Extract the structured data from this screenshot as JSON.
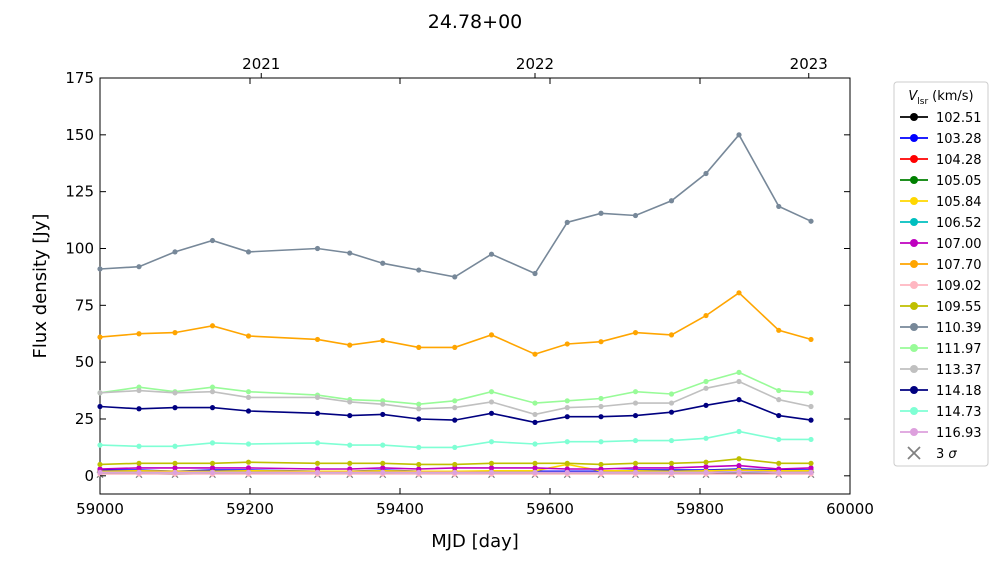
{
  "chart_data": {
    "type": "line",
    "title": "24.78+00",
    "xlabel": "MJD [day]",
    "ylabel": "Flux density [Jy]",
    "xlim": [
      59000,
      60000
    ],
    "ylim": [
      -8,
      175
    ],
    "xticks": [
      59000,
      59200,
      59400,
      59600,
      59800,
      60000
    ],
    "yticks": [
      0,
      25,
      50,
      75,
      100,
      125,
      150,
      175
    ],
    "top_axis": {
      "ticks": [
        {
          "mjd": 59215,
          "label": "2021"
        },
        {
          "mjd": 59580,
          "label": "2022"
        },
        {
          "mjd": 59945,
          "label": "2023"
        }
      ]
    },
    "legend_title": "V_lsr (km/s)",
    "legend_title_main": "V",
    "legend_title_sub": "lsr",
    "legend_title_unit": "(km/s)",
    "legend_placement": "outside-right",
    "grid": false,
    "x": [
      59000,
      59052,
      59100,
      59150,
      59198,
      59290,
      59333,
      59377,
      59425,
      59473,
      59522,
      59580,
      59623,
      59668,
      59714,
      59762,
      59808,
      59852,
      59905,
      59948
    ],
    "series": [
      {
        "name": "102.51",
        "color": "#000000",
        "values": [
          1.0,
          1.0,
          0.8,
          1.0,
          1.0,
          1.0,
          1.0,
          1.0,
          1.0,
          1.0,
          1.0,
          1.0,
          1.0,
          1.0,
          1.0,
          1.0,
          1.0,
          1.0,
          1.0,
          1.0
        ]
      },
      {
        "name": "103.28",
        "color": "#0000ff",
        "values": [
          2.5,
          2.5,
          2.0,
          2.5,
          2.5,
          2.0,
          2.0,
          2.5,
          2.0,
          2.0,
          2.0,
          2.0,
          2.0,
          2.0,
          2.5,
          2.5,
          2.5,
          3.0,
          2.5,
          2.5
        ]
      },
      {
        "name": "104.28",
        "color": "#ff0000",
        "values": [
          1.8,
          1.8,
          1.5,
          1.8,
          1.8,
          1.5,
          1.5,
          1.8,
          1.5,
          1.5,
          1.5,
          1.5,
          1.5,
          1.5,
          1.8,
          1.8,
          1.8,
          2.0,
          1.8,
          1.8
        ]
      },
      {
        "name": "105.05",
        "color": "#008000",
        "values": [
          1.5,
          1.5,
          1.2,
          1.5,
          1.5,
          1.2,
          1.2,
          1.5,
          1.2,
          1.2,
          1.2,
          1.2,
          1.2,
          1.2,
          1.5,
          1.5,
          1.5,
          1.8,
          1.5,
          1.5
        ]
      },
      {
        "name": "105.84",
        "color": "#ffd700",
        "values": [
          2.0,
          2.2,
          2.0,
          2.0,
          2.2,
          2.0,
          2.0,
          2.2,
          2.0,
          2.0,
          2.2,
          2.2,
          5.0,
          2.2,
          2.2,
          2.0,
          2.2,
          2.5,
          2.2,
          2.2
        ]
      },
      {
        "name": "106.52",
        "color": "#00bfbf",
        "values": [
          1.5,
          1.5,
          1.2,
          1.5,
          1.5,
          1.2,
          1.2,
          1.5,
          1.2,
          1.2,
          1.5,
          1.5,
          1.5,
          1.5,
          1.5,
          1.5,
          1.5,
          1.8,
          1.5,
          1.5
        ]
      },
      {
        "name": "107.00",
        "color": "#bf00bf",
        "values": [
          3.0,
          3.5,
          3.5,
          3.5,
          3.5,
          3.0,
          3.0,
          3.5,
          3.0,
          3.5,
          3.5,
          3.5,
          3.0,
          3.0,
          3.5,
          3.5,
          4.0,
          4.5,
          3.0,
          3.5
        ]
      },
      {
        "name": "107.70",
        "color": "#ffa500",
        "values": [
          61.0,
          62.5,
          63.0,
          66.0,
          61.5,
          60.0,
          57.5,
          59.5,
          56.5,
          56.5,
          62.0,
          53.5,
          58.0,
          59.0,
          63.0,
          62.0,
          70.5,
          80.5,
          64.0,
          60.0
        ]
      },
      {
        "name": "109.02",
        "color": "#ffb6c1",
        "values": [
          0.8,
          0.8,
          0.8,
          0.8,
          0.8,
          0.8,
          0.8,
          0.8,
          0.8,
          0.8,
          0.8,
          0.8,
          0.8,
          0.8,
          0.8,
          0.8,
          0.8,
          0.8,
          0.8,
          0.8
        ]
      },
      {
        "name": "109.55",
        "color": "#bfbf00",
        "values": [
          5.0,
          5.5,
          5.5,
          5.5,
          6.0,
          5.5,
          5.5,
          5.5,
          5.0,
          5.0,
          5.5,
          5.5,
          5.5,
          5.0,
          5.5,
          5.5,
          6.0,
          7.5,
          5.5,
          5.5
        ]
      },
      {
        "name": "110.39",
        "color": "#778899",
        "values": [
          91.0,
          92.0,
          98.5,
          103.5,
          98.5,
          100.0,
          98.0,
          93.5,
          90.5,
          87.5,
          97.5,
          89.0,
          111.5,
          115.5,
          114.5,
          121.0,
          133.0,
          150.0,
          118.5,
          112.0
        ]
      },
      {
        "name": "111.97",
        "color": "#98fb98",
        "values": [
          36.5,
          39.0,
          37.0,
          39.0,
          37.0,
          35.5,
          33.5,
          33.0,
          31.5,
          33.0,
          37.0,
          32.0,
          33.0,
          34.0,
          37.0,
          36.0,
          41.5,
          45.5,
          37.5,
          36.5
        ]
      },
      {
        "name": "113.37",
        "color": "#c0c0c0",
        "values": [
          36.5,
          37.5,
          36.5,
          37.0,
          34.5,
          34.5,
          32.5,
          31.5,
          29.5,
          30.0,
          32.5,
          27.0,
          30.0,
          30.5,
          32.0,
          32.0,
          38.5,
          41.5,
          33.5,
          30.5
        ]
      },
      {
        "name": "114.18",
        "color": "#000080",
        "values": [
          30.5,
          29.5,
          30.0,
          30.0,
          28.5,
          27.5,
          26.5,
          27.0,
          25.0,
          24.5,
          27.5,
          23.5,
          26.0,
          26.0,
          26.5,
          28.0,
          31.0,
          33.5,
          26.5,
          24.5
        ]
      },
      {
        "name": "114.73",
        "color": "#7fffd4",
        "values": [
          13.5,
          13.0,
          13.0,
          14.5,
          14.0,
          14.5,
          13.5,
          13.5,
          12.5,
          12.5,
          15.0,
          14.0,
          15.0,
          15.0,
          15.5,
          15.5,
          16.5,
          19.5,
          16.0,
          16.0
        ]
      },
      {
        "name": "116.93",
        "color": "#dda0dd",
        "values": [
          1.5,
          1.5,
          1.5,
          1.5,
          1.5,
          1.5,
          1.5,
          1.5,
          1.5,
          1.5,
          1.5,
          1.5,
          1.5,
          1.5,
          1.5,
          1.5,
          1.5,
          1.8,
          1.5,
          1.5
        ]
      }
    ],
    "sigma_marker": {
      "name": "3 σ",
      "label_main": "3",
      "label_sym": "σ",
      "color": "#808080",
      "values": [
        0.5,
        0.5,
        0.5,
        0.5,
        0.5,
        0.5,
        0.5,
        0.5,
        0.5,
        0.5,
        0.5,
        0.5,
        0.5,
        0.5,
        0.5,
        0.5,
        0.5,
        0.5,
        0.5,
        0.5
      ]
    }
  }
}
